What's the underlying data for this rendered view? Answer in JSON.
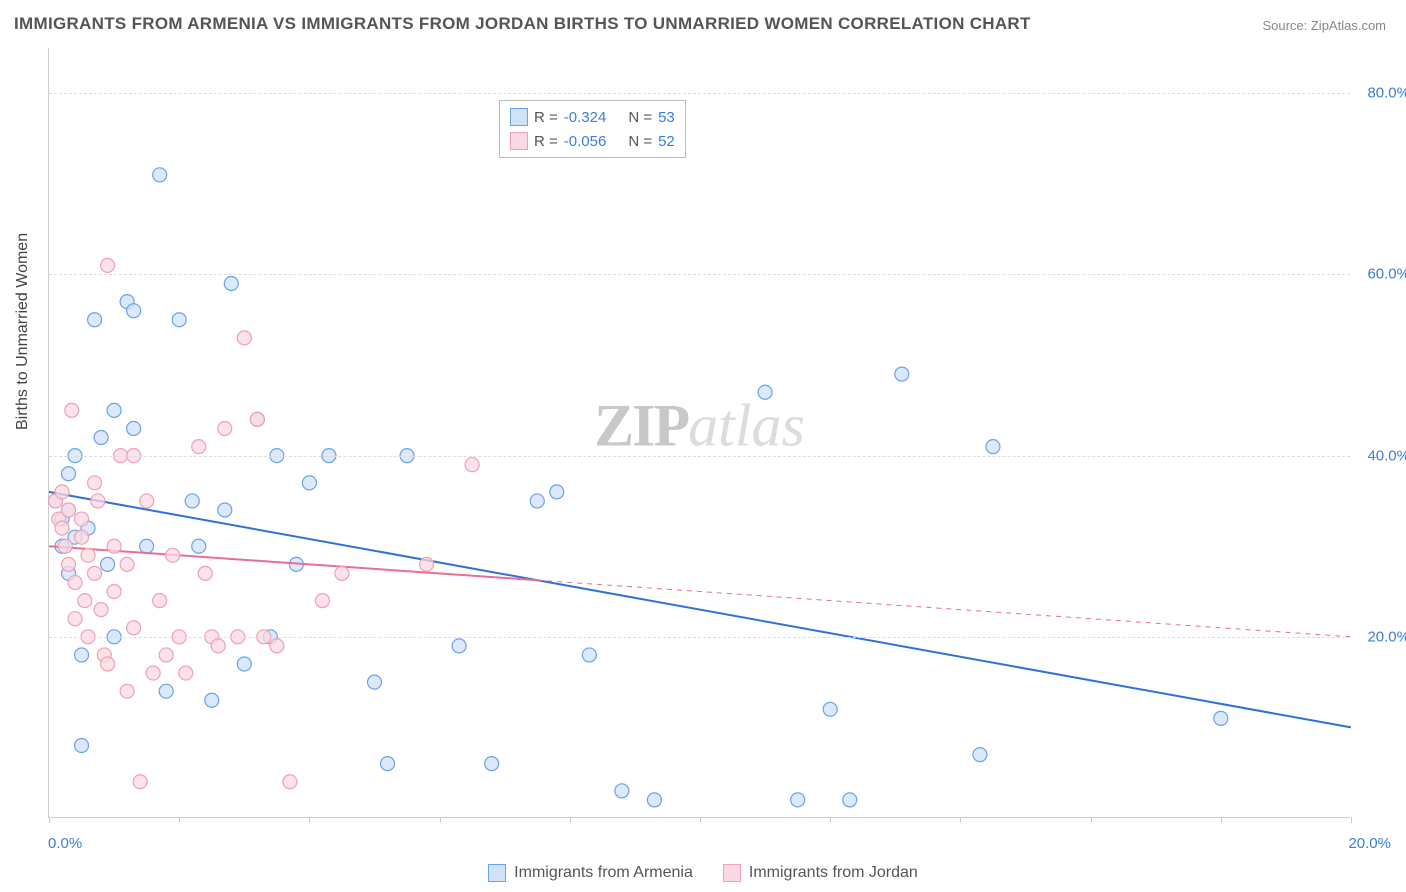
{
  "title": "IMMIGRANTS FROM ARMENIA VS IMMIGRANTS FROM JORDAN BIRTHS TO UNMARRIED WOMEN CORRELATION CHART",
  "source": "Source: ZipAtlas.com",
  "y_axis_label": "Births to Unmarried Women",
  "watermark": {
    "zip": "ZIP",
    "atlas": "atlas"
  },
  "chart": {
    "type": "scatter",
    "xlim": [
      0,
      20
    ],
    "ylim": [
      0,
      85
    ],
    "y_ticks": [
      20,
      40,
      60,
      80
    ],
    "y_tick_labels": [
      "20.0%",
      "40.0%",
      "60.0%",
      "80.0%"
    ],
    "x_ticks": [
      0,
      2,
      4,
      6,
      8,
      10,
      12,
      14,
      16,
      18,
      20
    ],
    "x_tick_labels": {
      "0": "0.0%",
      "20": "20.0%"
    },
    "grid_color": "#dddddd",
    "axis_color": "#cccccc",
    "background_color": "#ffffff",
    "marker_radius": 7,
    "marker_stroke_width": 1.2,
    "line_width": 2,
    "series": [
      {
        "name": "Immigrants from Armenia",
        "fill": "#cfe2f8",
        "stroke": "#6aa3e8",
        "line_color": "#2f71d4",
        "R": "-0.324",
        "N": "53",
        "regression": {
          "x1": 0,
          "y1": 36,
          "x2": 20,
          "y2": 10,
          "dashed_after_x": null
        },
        "points": [
          [
            0.1,
            35
          ],
          [
            0.2,
            33
          ],
          [
            0.2,
            30
          ],
          [
            0.3,
            27
          ],
          [
            0.3,
            38
          ],
          [
            0.3,
            34
          ],
          [
            0.4,
            40
          ],
          [
            0.4,
            31
          ],
          [
            0.5,
            18
          ],
          [
            0.5,
            8
          ],
          [
            0.6,
            32
          ],
          [
            0.7,
            55
          ],
          [
            0.8,
            42
          ],
          [
            0.9,
            28
          ],
          [
            1.0,
            45
          ],
          [
            1.0,
            20
          ],
          [
            1.2,
            57
          ],
          [
            1.3,
            56
          ],
          [
            1.3,
            43
          ],
          [
            1.5,
            30
          ],
          [
            1.7,
            71
          ],
          [
            1.8,
            14
          ],
          [
            2.0,
            55
          ],
          [
            2.2,
            35
          ],
          [
            2.3,
            30
          ],
          [
            2.5,
            13
          ],
          [
            2.7,
            34
          ],
          [
            2.8,
            59
          ],
          [
            3.0,
            17
          ],
          [
            3.2,
            44
          ],
          [
            3.4,
            20
          ],
          [
            3.5,
            40
          ],
          [
            3.8,
            28
          ],
          [
            4.0,
            37
          ],
          [
            4.3,
            40
          ],
          [
            5.0,
            15
          ],
          [
            5.2,
            6
          ],
          [
            5.5,
            40
          ],
          [
            6.3,
            19
          ],
          [
            6.8,
            6
          ],
          [
            7.5,
            35
          ],
          [
            7.8,
            36
          ],
          [
            8.3,
            18
          ],
          [
            8.8,
            3
          ],
          [
            9.3,
            2
          ],
          [
            11.0,
            47
          ],
          [
            11.5,
            2
          ],
          [
            12.0,
            12
          ],
          [
            13.1,
            49
          ],
          [
            14.3,
            7
          ],
          [
            14.5,
            41
          ],
          [
            18.0,
            11
          ],
          [
            12.3,
            2
          ]
        ]
      },
      {
        "name": "Immigrants from Jordan",
        "fill": "#fbd9e2",
        "stroke": "#f19fb6",
        "line_color": "#e86f91",
        "R": "-0.056",
        "N": "52",
        "regression": {
          "x1": 0,
          "y1": 30,
          "x2": 20,
          "y2": 20,
          "dashed_after_x": 7.5
        },
        "points": [
          [
            0.1,
            35
          ],
          [
            0.15,
            33
          ],
          [
            0.2,
            32
          ],
          [
            0.2,
            36
          ],
          [
            0.25,
            30
          ],
          [
            0.3,
            28
          ],
          [
            0.3,
            34
          ],
          [
            0.35,
            45
          ],
          [
            0.4,
            26
          ],
          [
            0.4,
            22
          ],
          [
            0.5,
            31
          ],
          [
            0.5,
            33
          ],
          [
            0.55,
            24
          ],
          [
            0.6,
            20
          ],
          [
            0.6,
            29
          ],
          [
            0.7,
            37
          ],
          [
            0.7,
            27
          ],
          [
            0.75,
            35
          ],
          [
            0.8,
            23
          ],
          [
            0.85,
            18
          ],
          [
            0.9,
            17
          ],
          [
            0.9,
            61
          ],
          [
            1.0,
            30
          ],
          [
            1.0,
            25
          ],
          [
            1.1,
            40
          ],
          [
            1.2,
            14
          ],
          [
            1.2,
            28
          ],
          [
            1.3,
            21
          ],
          [
            1.3,
            40
          ],
          [
            1.4,
            4
          ],
          [
            1.5,
            35
          ],
          [
            1.6,
            16
          ],
          [
            1.7,
            24
          ],
          [
            1.8,
            18
          ],
          [
            1.9,
            29
          ],
          [
            2.0,
            20
          ],
          [
            2.1,
            16
          ],
          [
            2.3,
            41
          ],
          [
            2.4,
            27
          ],
          [
            2.5,
            20
          ],
          [
            2.6,
            19
          ],
          [
            2.7,
            43
          ],
          [
            2.9,
            20
          ],
          [
            3.0,
            53
          ],
          [
            3.2,
            44
          ],
          [
            3.3,
            20
          ],
          [
            3.5,
            19
          ],
          [
            3.7,
            4
          ],
          [
            4.2,
            24
          ],
          [
            4.5,
            27
          ],
          [
            5.8,
            28
          ],
          [
            6.5,
            39
          ]
        ]
      }
    ]
  },
  "legend_box_labels": {
    "R": "R =",
    "N": "N ="
  },
  "bottom_legend": [
    {
      "label": "Immigrants from Armenia",
      "fill": "#cfe2f8",
      "stroke": "#6aa3e8"
    },
    {
      "label": "Immigrants from Jordan",
      "fill": "#fbd9e2",
      "stroke": "#f19fb6"
    }
  ]
}
